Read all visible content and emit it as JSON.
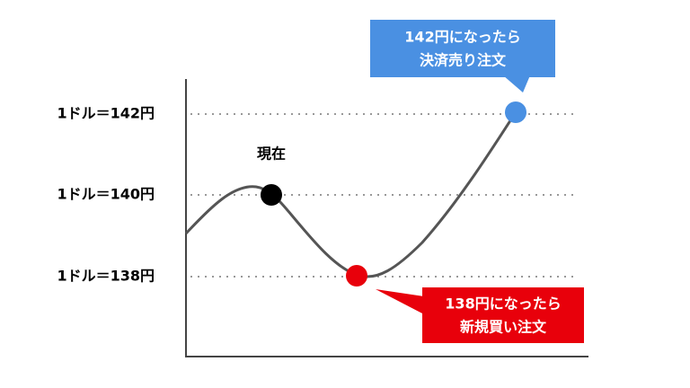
{
  "levels": [
    {
      "label": "1ドル＝142円"
    },
    {
      "label": "1ドル＝140円"
    },
    {
      "label": "1ドル＝138円"
    }
  ],
  "current": {
    "label": "現在"
  },
  "callouts": [
    {
      "lines": [
        "142円になったら",
        "決済売り注文"
      ]
    },
    {
      "lines": [
        "138円になったら",
        "新規買い注文"
      ]
    }
  ]
}
